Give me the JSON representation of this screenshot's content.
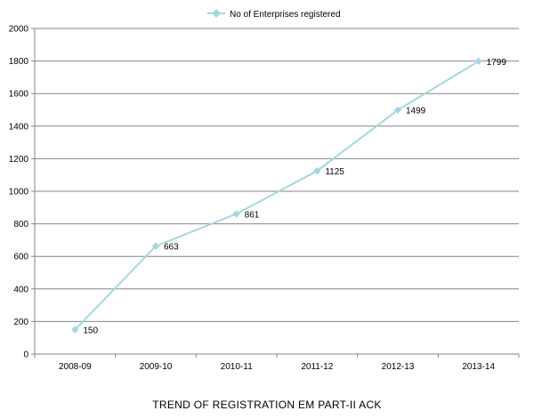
{
  "chart_data": {
    "type": "line",
    "title": "TREND OF REGISTRATION  EM PART-II ACK",
    "categories": [
      "2008-09",
      "2009-10",
      "2010-11",
      "2011-12",
      "2012-13",
      "2013-14"
    ],
    "series": [
      {
        "name": "No of Enterprises registered",
        "values": [
          150,
          663,
          861,
          1125,
          1499,
          1799
        ]
      }
    ],
    "data_labels": [
      "150",
      "663",
      "861",
      "1125",
      "1499",
      "1799"
    ],
    "y_ticks": [
      "0",
      "200",
      "400",
      "600",
      "800",
      "1000",
      "1200",
      "1400",
      "1600",
      "1800",
      "2000"
    ],
    "ylim": [
      0,
      2000
    ],
    "grid": true,
    "legend_position": "top-center",
    "colors": {
      "series": "#A5D8DC",
      "grid": "#868686",
      "axis": "#868686"
    }
  }
}
